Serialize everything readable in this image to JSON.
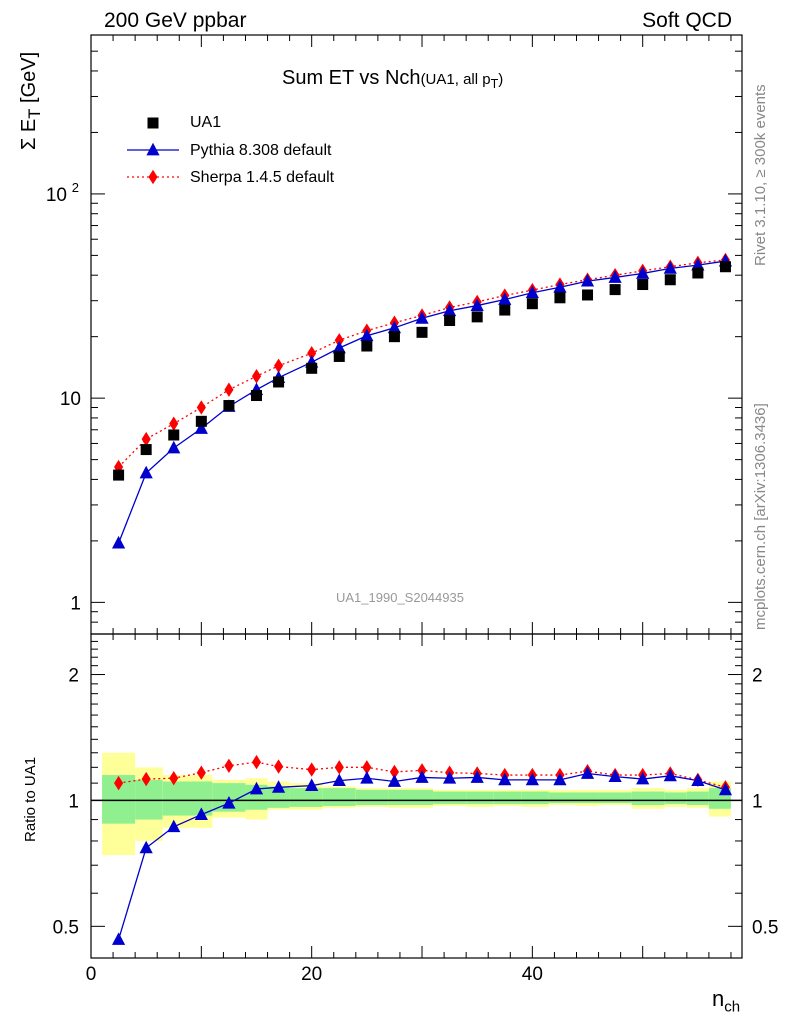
{
  "header": {
    "left": "200 GeV ppbar",
    "right": "Soft QCD"
  },
  "plot_title": {
    "main": "Sum ET vs Nch",
    "sub": "(UA1, all p",
    "sub_index": "T",
    "sub_close": ")"
  },
  "watermark": "UA1_1990_S2044935",
  "side_top": "Rivet 3.1.10, ≥ 300k events",
  "side_bottom": "mcplots.cern.ch [arXiv:1306.3436]",
  "colors": {
    "data": "#000000",
    "pythia": "#0000cc",
    "sherpa": "#ff0000",
    "band1": "#90f090",
    "band2": "#ffff99"
  },
  "chart_data": [
    {
      "type": "scatter",
      "panel": "main",
      "ylabel": "Σ E",
      "ylabel_index": "T",
      "ylabel_unit": " [GeV]",
      "yscale": "log",
      "ylim": [
        0.7,
        600
      ],
      "xlim": [
        0,
        59
      ],
      "yticks": [
        {
          "value": 1,
          "label": "1"
        },
        {
          "value": 10,
          "label": "10"
        },
        {
          "value": 100,
          "label": "10",
          "sup": "2"
        }
      ],
      "legend": [
        {
          "name": "UA1",
          "marker": "square"
        },
        {
          "name": "Pythia 8.308 default",
          "marker": "triangle"
        },
        {
          "name": "Sherpa 1.4.5 default",
          "marker": "diamond"
        }
      ],
      "series": [
        {
          "name": "UA1",
          "x": [
            2.5,
            5,
            7.5,
            10,
            12.5,
            15,
            17,
            20,
            22.5,
            25,
            27.5,
            30,
            32.5,
            35,
            37.5,
            40,
            42.5,
            45,
            47.5,
            50,
            52.5,
            55,
            57.5
          ],
          "y": [
            4.2,
            5.6,
            6.6,
            7.7,
            9.2,
            10.3,
            12,
            14,
            16,
            18,
            20,
            21,
            24,
            25,
            27,
            29,
            31,
            32,
            34,
            36,
            38,
            41,
            44
          ]
        },
        {
          "name": "Pythia 8.308 default",
          "x": [
            2.5,
            5,
            7.5,
            10,
            12.5,
            15,
            17,
            20,
            22.5,
            25,
            27.5,
            30,
            32.5,
            35,
            37.5,
            40,
            42.5,
            45,
            47.5,
            50,
            52.5,
            55,
            57.5
          ],
          "y": [
            1.95,
            4.3,
            5.7,
            7.1,
            9.1,
            11,
            12.6,
            15,
            17.6,
            20.2,
            22.1,
            24.6,
            26.8,
            28.4,
            30.4,
            32.8,
            34.9,
            37.4,
            39,
            40.8,
            43.2,
            44.8,
            46.9
          ]
        },
        {
          "name": "Sherpa 1.4.5 default",
          "x": [
            2.5,
            5,
            7.5,
            10,
            12.5,
            15,
            17,
            20,
            22.5,
            25,
            27.5,
            30,
            32.5,
            35,
            37.5,
            40,
            42.5,
            45,
            47.5,
            50,
            52.5,
            55,
            57.5
          ],
          "y": [
            4.6,
            6.3,
            7.5,
            9,
            11,
            12.8,
            14.4,
            16.6,
            19.2,
            21.4,
            23.4,
            25.4,
            27.8,
            29.6,
            31.8,
            33.8,
            36,
            38,
            40,
            42,
            44,
            46,
            47.5
          ]
        }
      ]
    },
    {
      "type": "scatter",
      "panel": "ratio",
      "ylabel": "Ratio to UA1",
      "xlabel": "n",
      "xlabel_index": "ch",
      "yscale": "log",
      "ylim": [
        0.42,
        2.5
      ],
      "xlim": [
        0,
        59
      ],
      "yticks": [
        0.5,
        1,
        2
      ],
      "xticks": [
        0,
        20,
        40
      ],
      "reference": 1,
      "bands": [
        {
          "x": [
            [
              1,
              4
            ],
            [
              4,
              6.5
            ],
            [
              6.5,
              11
            ],
            [
              11,
              14
            ],
            [
              14,
              16
            ],
            [
              16,
              18
            ],
            [
              18,
              21
            ],
            [
              21,
              24
            ],
            [
              24,
              27
            ],
            [
              27,
              31
            ],
            [
              31,
              34
            ],
            [
              34,
              36.5
            ],
            [
              36.5,
              39
            ],
            [
              39,
              41.5
            ],
            [
              41.5,
              44
            ],
            [
              44,
              46
            ],
            [
              46,
              49
            ],
            [
              49,
              52
            ],
            [
              52,
              54
            ],
            [
              54,
              56
            ],
            [
              56,
              58
            ]
          ],
          "stat": [
            [
              0.88,
              1.15
            ],
            [
              0.9,
              1.12
            ],
            [
              0.92,
              1.11
            ],
            [
              0.94,
              1.1
            ],
            [
              0.95,
              1.09
            ],
            [
              0.96,
              1.08
            ],
            [
              0.965,
              1.07
            ],
            [
              0.97,
              1.07
            ],
            [
              0.975,
              1.06
            ],
            [
              0.975,
              1.06
            ],
            [
              0.98,
              1.05
            ],
            [
              0.98,
              1.05
            ],
            [
              0.98,
              1.05
            ],
            [
              0.98,
              1.05
            ],
            [
              0.985,
              1.045
            ],
            [
              0.985,
              1.045
            ],
            [
              0.985,
              1.045
            ],
            [
              0.975,
              1.05
            ],
            [
              0.98,
              1.045
            ],
            [
              0.975,
              1.05
            ],
            [
              0.955,
              1.07
            ]
          ],
          "syst": [
            [
              0.74,
              1.3
            ],
            [
              0.8,
              1.2
            ],
            [
              0.86,
              1.15
            ],
            [
              0.91,
              1.12
            ],
            [
              0.9,
              1.13
            ],
            [
              0.95,
              1.11
            ],
            [
              0.95,
              1.1
            ],
            [
              0.96,
              1.08
            ],
            [
              0.965,
              1.07
            ],
            [
              0.96,
              1.07
            ],
            [
              0.97,
              1.06
            ],
            [
              0.965,
              1.06
            ],
            [
              0.97,
              1.06
            ],
            [
              0.965,
              1.06
            ],
            [
              0.975,
              1.06
            ],
            [
              0.97,
              1.06
            ],
            [
              0.975,
              1.06
            ],
            [
              0.955,
              1.07
            ],
            [
              0.965,
              1.06
            ],
            [
              0.96,
              1.07
            ],
            [
              0.915,
              1.11
            ]
          ]
        }
      ],
      "series": [
        {
          "name": "Pythia 8.308 default",
          "x": [
            2.5,
            5,
            7.5,
            10,
            12.5,
            15,
            17,
            20,
            22.5,
            25,
            27.5,
            30,
            32.5,
            35,
            37.5,
            40,
            42.5,
            45,
            47.5,
            50,
            52.5,
            55,
            57.5
          ],
          "y": [
            0.465,
            0.77,
            0.865,
            0.925,
            0.985,
            1.065,
            1.075,
            1.085,
            1.115,
            1.13,
            1.11,
            1.135,
            1.13,
            1.135,
            1.12,
            1.12,
            1.12,
            1.16,
            1.14,
            1.125,
            1.145,
            1.115,
            1.06
          ]
        },
        {
          "name": "Sherpa 1.4.5 default",
          "x": [
            2.5,
            5,
            7.5,
            10,
            12.5,
            15,
            17,
            20,
            22.5,
            25,
            27.5,
            30,
            32.5,
            35,
            37.5,
            40,
            42.5,
            45,
            47.5,
            50,
            52.5,
            55,
            57.5
          ],
          "y": [
            1.1,
            1.125,
            1.13,
            1.165,
            1.21,
            1.235,
            1.205,
            1.185,
            1.2,
            1.2,
            1.17,
            1.18,
            1.165,
            1.16,
            1.15,
            1.15,
            1.15,
            1.175,
            1.15,
            1.15,
            1.16,
            1.12,
            1.075
          ]
        }
      ]
    }
  ]
}
